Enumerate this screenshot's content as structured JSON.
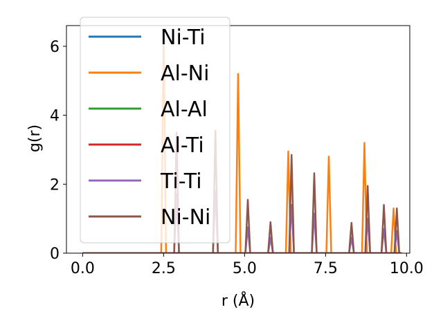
{
  "chart_data": {
    "type": "line",
    "xlabel": "r (Å)",
    "ylabel": "g(r)",
    "xlim": [
      -0.5,
      10.1
    ],
    "ylim": [
      0,
      6.6
    ],
    "xticks": [
      0.0,
      2.5,
      5.0,
      7.5,
      10.0
    ],
    "xtick_labels": [
      "0.0",
      "2.5",
      "5.0",
      "7.5",
      "10.0"
    ],
    "yticks": [
      0,
      2,
      4,
      6
    ],
    "ytick_labels": [
      "0",
      "2",
      "4",
      "6"
    ],
    "grid": false,
    "legend_position": "top-left",
    "x_range": [
      0.0,
      9.85
    ],
    "series": [
      {
        "name": "Ni-Ti",
        "color": "#1f77b4",
        "peaks": []
      },
      {
        "name": "Al-Ni",
        "color": "#ff7f0e",
        "peaks": [
          [
            2.5,
            6.3
          ],
          [
            4.8,
            5.2
          ],
          [
            6.35,
            2.95
          ],
          [
            7.6,
            2.8
          ],
          [
            8.7,
            3.2
          ],
          [
            9.6,
            1.3
          ]
        ]
      },
      {
        "name": "Al-Al",
        "color": "#2ca02c",
        "peaks": []
      },
      {
        "name": "Al-Ti",
        "color": "#d62728",
        "peaks": []
      },
      {
        "name": "Ti-Ti",
        "color": "#9467bd",
        "peaks": [
          [
            2.9,
            1.7
          ],
          [
            4.1,
            1.8
          ],
          [
            5.1,
            0.75
          ],
          [
            5.8,
            0.45
          ],
          [
            6.45,
            1.4
          ],
          [
            7.15,
            1.15
          ],
          [
            8.3,
            0.45
          ],
          [
            8.8,
            1.0
          ],
          [
            9.3,
            0.7
          ],
          [
            9.7,
            0.65
          ]
        ]
      },
      {
        "name": "Ni-Ni",
        "color": "#8c564b",
        "peaks": [
          [
            2.9,
            3.5
          ],
          [
            4.1,
            3.55
          ],
          [
            5.1,
            1.55
          ],
          [
            5.8,
            0.9
          ],
          [
            6.45,
            2.85
          ],
          [
            7.15,
            2.32
          ],
          [
            8.3,
            0.88
          ],
          [
            8.8,
            1.95
          ],
          [
            9.3,
            1.4
          ],
          [
            9.7,
            1.3
          ]
        ]
      }
    ]
  }
}
